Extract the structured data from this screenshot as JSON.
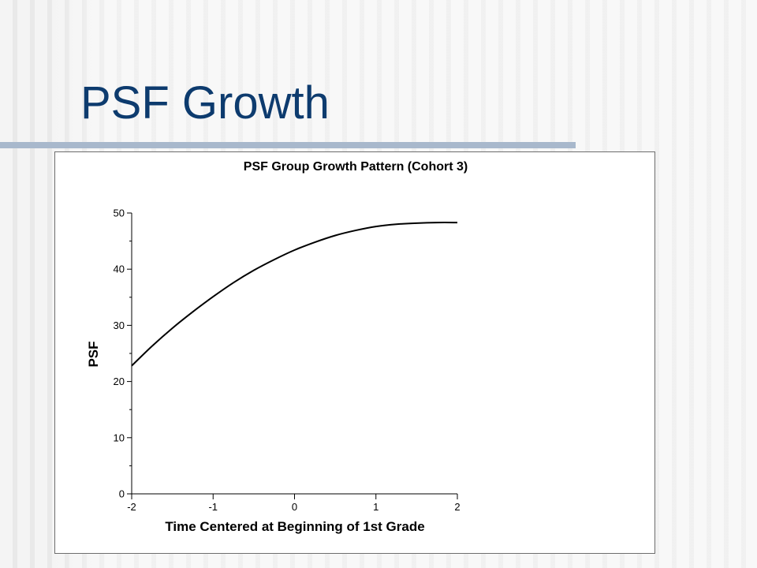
{
  "slide": {
    "title": "PSF Growth",
    "accent_color": "#0d3b6e",
    "rule_color": "#a8b8cc"
  },
  "chart_data": {
    "type": "line",
    "title": "PSF Group Growth Pattern (Cohort 3)",
    "xlabel": "Time Centered at Beginning of 1st Grade",
    "ylabel": "PSF",
    "xlim": [
      -2,
      2
    ],
    "ylim": [
      0,
      50
    ],
    "x_ticks": [
      -2,
      -1,
      0,
      1,
      2
    ],
    "x_tick_labels": [
      "-2",
      "-1",
      "0",
      "1",
      "2"
    ],
    "y_ticks": [
      0,
      10,
      20,
      30,
      40,
      50
    ],
    "y_tick_labels": [
      "0",
      "10",
      "20",
      "30",
      "40",
      "50"
    ],
    "y_minor_ticks": [
      5,
      15,
      25,
      35,
      45
    ],
    "grid": false,
    "legend": "none",
    "series": [
      {
        "color": "#000000",
        "x": [
          -2,
          -1.75,
          -1.5,
          -1.25,
          -1,
          -0.75,
          -0.5,
          -0.25,
          0,
          0.25,
          0.5,
          0.75,
          1,
          1.25,
          1.5,
          1.75,
          2
        ],
        "y": [
          22.8,
          26.3,
          29.5,
          32.4,
          35.1,
          37.6,
          39.8,
          41.7,
          43.4,
          44.8,
          46.0,
          46.9,
          47.6,
          48.0,
          48.2,
          48.3,
          48.3
        ]
      }
    ]
  }
}
